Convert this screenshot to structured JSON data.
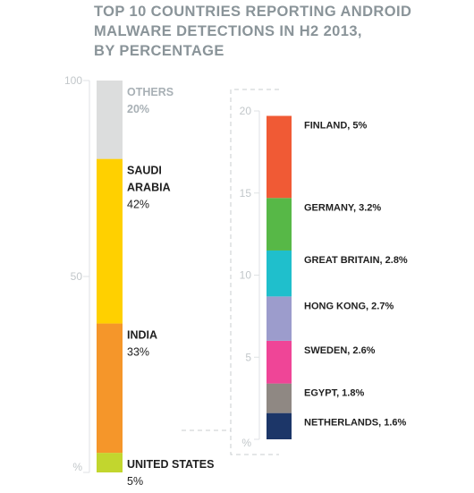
{
  "title_lines": [
    "TOP 10 COUNTRIES REPORTING ANDROID",
    "MALWARE DETECTIONS IN H2 2013,",
    "BY PERCENTAGE"
  ],
  "chart_data": [
    {
      "type": "bar",
      "stacked": true,
      "title": "TOP 10 COUNTRIES REPORTING ANDROID MALWARE DETECTIONS IN H2 2013, BY PERCENTAGE",
      "ylabel": "%",
      "ylim": [
        0,
        100
      ],
      "yticks": [
        "100",
        "50",
        "%"
      ],
      "series": [
        {
          "name": "UNITED STATES",
          "label_lines": [
            "UNITED STATES"
          ],
          "value": 5,
          "value_text": "5%",
          "color": "#c2d62e"
        },
        {
          "name": "INDIA",
          "label_lines": [
            "INDIA"
          ],
          "value": 33,
          "value_text": "33%",
          "color": "#f5962a"
        },
        {
          "name": "SAUDI ARABIA",
          "label_lines": [
            "SAUDI",
            "ARABIA"
          ],
          "value": 42,
          "value_text": "42%",
          "color": "#ffd000"
        },
        {
          "name": "OTHERS",
          "label_lines": [
            "OTHERS"
          ],
          "value": 20,
          "value_text": "20%",
          "color": "#dcdddd",
          "muted": true
        }
      ]
    },
    {
      "type": "bar",
      "stacked": true,
      "ylabel": "%",
      "ylim": [
        0,
        20
      ],
      "yticks": [
        "20",
        "15",
        "10",
        "5",
        "%"
      ],
      "series": [
        {
          "name": "NETHERLANDS",
          "label": "NETHERLANDS, 1.6%",
          "value": 1.6,
          "color": "#1c3668"
        },
        {
          "name": "EGYPT",
          "label": "EGYPT, 1.8%",
          "value": 1.8,
          "color": "#8f8883"
        },
        {
          "name": "SWEDEN",
          "label": "SWEDEN, 2.6%",
          "value": 2.6,
          "color": "#ef4597"
        },
        {
          "name": "HONG KONG",
          "label": "HONG KONG, 2.7%",
          "value": 2.7,
          "color": "#9c9ccc"
        },
        {
          "name": "GREAT BRITAIN",
          "label": "GREAT BRITAIN, 2.8%",
          "value": 2.8,
          "color": "#1fbfcc"
        },
        {
          "name": "GERMANY",
          "label": "GERMANY, 3.2%",
          "value": 3.2,
          "color": "#57b847"
        },
        {
          "name": "FINLAND",
          "label": "FINLAND, 5%",
          "value": 5,
          "color": "#f05a35"
        }
      ]
    }
  ],
  "colors": {
    "axis_text": "#c2c7ca",
    "label_text": "#1f1f1f",
    "muted_text": "#a8b0b5",
    "guide": "#c8cccf"
  }
}
